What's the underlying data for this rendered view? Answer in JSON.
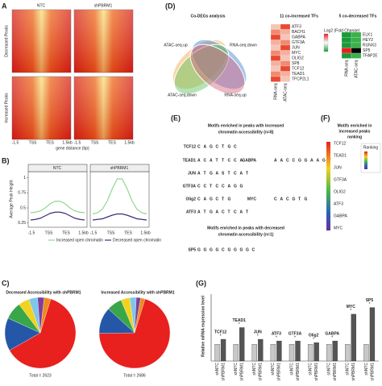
{
  "panels": {
    "a": "A",
    "b": "B)",
    "c": "C)",
    "d": "(D)",
    "e": "(E)",
    "f": "(F)",
    "g": "(G)"
  },
  "heatmaps": {
    "columns": [
      "NTC",
      "shPBRM1"
    ],
    "rows": [
      "Decreased Peaks",
      "Increased Peaks"
    ],
    "xticks": [
      "-1.5",
      "TSS",
      "TES",
      "1.5kb"
    ],
    "xlabel": "gene distance (bp)"
  },
  "profile": {
    "titles": [
      "NTC",
      "shPBRM1"
    ],
    "ylabel": "Average Peak Height",
    "ylim": [
      0.18,
      1.1
    ],
    "yticks": [
      0.25,
      0.5,
      0.75,
      1.0
    ],
    "xticks": [
      "-1.5",
      "TSS",
      "TES",
      "1.5kb"
    ],
    "series": [
      {
        "name": "Increased open chromatin",
        "color": "#8fd88f",
        "values": [
          [
            0.42,
            0.43,
            0.45,
            0.5,
            0.57,
            0.61,
            0.61,
            0.57,
            0.5,
            0.45,
            0.43,
            0.42
          ],
          [
            0.4,
            0.42,
            0.48,
            0.62,
            0.82,
            0.98,
            0.98,
            0.82,
            0.62,
            0.48,
            0.42,
            0.4
          ]
        ]
      },
      {
        "name": "Decreased open chromatin",
        "color": "#3b2f7a",
        "values": [
          [
            0.3,
            0.31,
            0.33,
            0.37,
            0.41,
            0.43,
            0.43,
            0.41,
            0.37,
            0.33,
            0.31,
            0.3
          ],
          [
            0.3,
            0.31,
            0.32,
            0.35,
            0.38,
            0.4,
            0.4,
            0.38,
            0.35,
            0.32,
            0.31,
            0.3
          ]
        ]
      }
    ]
  },
  "pies": [
    {
      "title": "Decreased Accessibility with shPBRM1",
      "total": "Total = 2623",
      "values": [
        62,
        15,
        8,
        5,
        4,
        3,
        3
      ]
    },
    {
      "title": "Increased Accessibility with shPBRM1",
      "total": "Total = 2686",
      "values": [
        70,
        12,
        7,
        4,
        3,
        2,
        2
      ]
    }
  ],
  "pie_colors": [
    "#e8201e",
    "#2457a8",
    "#3aa64a",
    "#f2d21f",
    "#7fc6e8",
    "#7b3fa0",
    "#f08a1c"
  ],
  "venn": {
    "title": "Co-DEGs analysis",
    "sets": [
      "ATAC-seq.up",
      "RNA-seq.down",
      "ATAC-seq.down",
      "RNA-seq.up"
    ]
  },
  "co_increased": {
    "title": "11 co-increased TFs",
    "genes": [
      "ATF3",
      "BACH1",
      "GABPA",
      "GTF3A",
      "JUN",
      "MYC",
      "OLIG2",
      "SP8",
      "TCF12",
      "TEAD1",
      "TFCP2L1"
    ],
    "columns": [
      "RNA-seq",
      "ATAC-seq"
    ],
    "legend": "Log2 (Fold Change)"
  },
  "co_decreased": {
    "title": "5 co-decreased TFs",
    "genes": [
      "ELK1",
      "HEY2",
      "RUNX3",
      "SP5",
      "TFAP2E"
    ],
    "columns": [
      "RNA-seq",
      "ATAC-seq"
    ]
  },
  "motifs": {
    "title_up": [
      "Motifs enriched in peaks with increased",
      "chromatin accessibility (n=8)"
    ],
    "title_down": [
      "Motifs enriched in peaks with decreased",
      "chromatin accessibility (n=1)"
    ],
    "rows": [
      {
        "name": "TCF12",
        "logo": [
          "C",
          "A",
          "G",
          "C",
          "T",
          "G",
          "C"
        ]
      },
      {
        "name": "TEAD1",
        "logo": [
          "A",
          "C",
          "A",
          "T",
          "T",
          "C",
          "C",
          "A"
        ]
      },
      {
        "name": "GABPA",
        "logo": [
          "A",
          "A",
          "C",
          "C",
          "G",
          "G",
          "A",
          "A",
          "G",
          "T"
        ]
      },
      {
        "name": "JUN",
        "logo": [
          "A",
          "T",
          "G",
          "A",
          "S",
          "T",
          "C",
          "A",
          "T"
        ]
      },
      {
        "name": "GTF3A",
        "logo": [
          "C",
          "C",
          "T",
          "C",
          "C",
          "A",
          "G",
          "G"
        ]
      },
      {
        "name": "Olig2",
        "logo": [
          "C",
          "A",
          "G",
          "C",
          "T",
          "G"
        ]
      },
      {
        "name": "MYC",
        "logo": [
          "C",
          "A",
          "C",
          "G",
          "T",
          "G"
        ]
      },
      {
        "name": "ATF3",
        "logo": [
          "A",
          "T",
          "G",
          "A",
          "C",
          "T",
          "C",
          "A",
          "T"
        ]
      },
      {
        "name": "SP5",
        "logo": [
          "G",
          "G",
          "G",
          "G",
          "C",
          "G",
          "G",
          "G",
          "G",
          "C"
        ]
      }
    ]
  },
  "ranking": {
    "title": [
      "Motifs enriched in",
      "increased peaks",
      "ranking"
    ],
    "legend": "Ranking",
    "genes": [
      "TCF12",
      "TEAD1",
      "JUN",
      "GTF3A",
      "OLIG2",
      "ATF3",
      "GABPA",
      "MYC"
    ]
  },
  "qpcr": {
    "ylabel": "Relative mRNA expression level",
    "groups": [
      "TCF12",
      "TEAD1",
      "JUN",
      "ATF3",
      "GTF3A",
      "Olig2",
      "GABPA",
      "MYC",
      "SP5"
    ],
    "ylim": [
      0,
      4
    ],
    "significance": "*",
    "series": [
      {
        "name": "shNTC",
        "color": "#c8c8c8",
        "values": [
          1,
          1,
          1,
          1,
          1,
          1,
          1,
          1,
          1
        ]
      },
      {
        "name": "shPBRM1",
        "color": "#555555",
        "values": [
          1.3,
          2.0,
          1.3,
          1.2,
          1.2,
          1.1,
          1.2,
          2.8,
          3.2
        ]
      }
    ]
  }
}
